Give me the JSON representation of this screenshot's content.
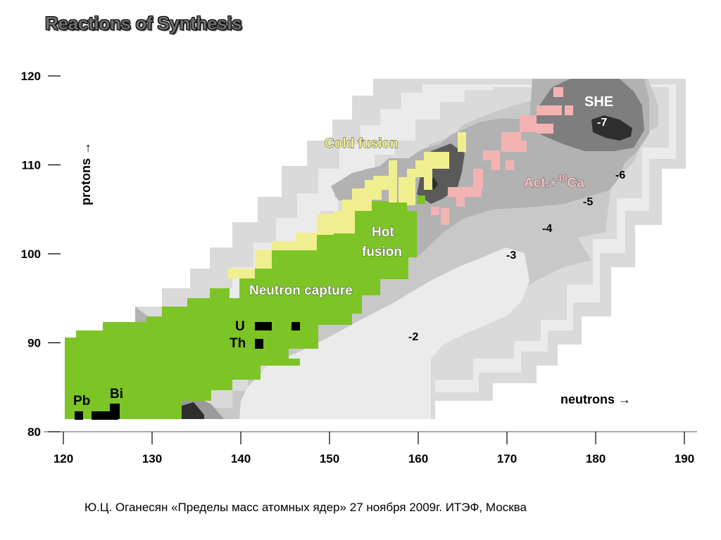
{
  "title": "Reactions of Synthesis",
  "footer": "Ю.Ц. Оганесян «Пределы масс атомных ядер» 27 ноября 2009г. ИТЭФ, Москва",
  "chart_data": {
    "type": "heatmap",
    "xlabel": "neutrons",
    "ylabel": "protons",
    "xlim": [
      120,
      190
    ],
    "ylim": [
      80,
      120
    ],
    "x_ticks": [
      "120",
      "130",
      "140",
      "150",
      "160",
      "170",
      "180",
      "190"
    ],
    "y_ticks": [
      "80",
      "90",
      "100",
      "110",
      "120"
    ],
    "regions": {
      "neutron_capture": {
        "label": "Neutron capture",
        "color": "#7dc427"
      },
      "hot_fusion": {
        "label": "Hot fusion",
        "color": "#7dc427"
      },
      "cold_fusion": {
        "label": "Cold fusion",
        "color": "#f0ef8f"
      },
      "act_ca": {
        "label_main": "Act.+",
        "label_sup": "48",
        "label_end": "Ca",
        "color": "#f4b3b3"
      },
      "she": {
        "label": "SHE"
      }
    },
    "elements": [
      {
        "label": "Pb",
        "n": 122,
        "z": 82
      },
      {
        "label": "Bi",
        "n": 126,
        "z": 83
      },
      {
        "label": "U",
        "n": 143,
        "z": 92
      },
      {
        "label": "Th",
        "n": 142,
        "z": 90
      }
    ],
    "contour_labels": [
      "-2",
      "-3",
      "-4",
      "-5",
      "-6",
      "-7"
    ],
    "shading_colors": [
      "#ebebeb",
      "#dadada",
      "#c8c8c8",
      "#b2b2b2",
      "#9b9b9b",
      "#7e7e7e",
      "#5a5a5a",
      "#2e2e2e"
    ]
  }
}
